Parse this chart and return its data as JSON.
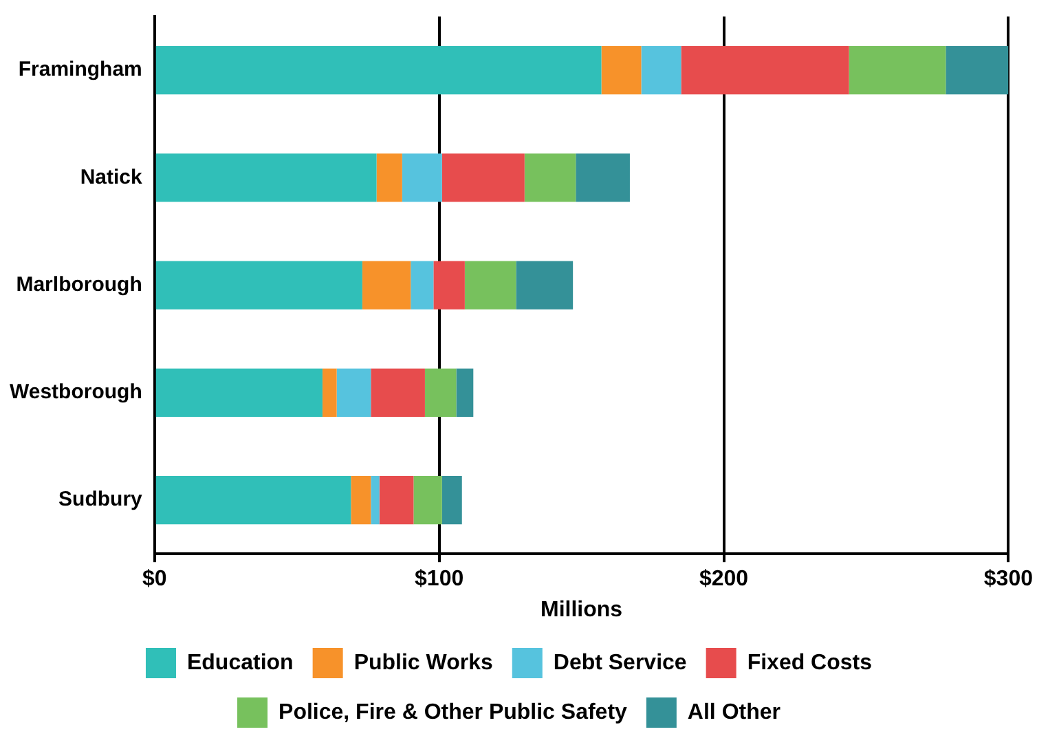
{
  "chart_data": {
    "type": "bar",
    "orientation": "horizontal",
    "stacked": true,
    "categories": [
      "Framingham",
      "Natick",
      "Marlborough",
      "Westborough",
      "Sudbury"
    ],
    "series": [
      {
        "name": "Education",
        "color": "#30bfb8",
        "values": [
          157,
          78,
          73,
          59,
          69
        ]
      },
      {
        "name": "Public Works",
        "color": "#f7922a",
        "values": [
          14,
          9,
          17,
          5,
          7
        ]
      },
      {
        "name": "Debt Service",
        "color": "#56c3de",
        "values": [
          14,
          14,
          8,
          12,
          3
        ]
      },
      {
        "name": "Fixed Costs",
        "color": "#e74c4d",
        "values": [
          59,
          29,
          11,
          19,
          12
        ]
      },
      {
        "name": "Police, Fire & Other Public Safety",
        "color": "#77c15d",
        "values": [
          34,
          18,
          18,
          11,
          10
        ]
      },
      {
        "name": "All Other",
        "color": "#349198",
        "values": [
          22,
          19,
          20,
          6,
          7
        ]
      }
    ],
    "xlabel": "Millions",
    "xlim": [
      0,
      300
    ],
    "xticks": [
      {
        "value": 0,
        "label": "$0"
      },
      {
        "value": 100,
        "label": "$100"
      },
      {
        "value": 200,
        "label": "$200"
      },
      {
        "value": 300,
        "label": "$300"
      }
    ],
    "grid": "x",
    "legend": "bottom"
  }
}
